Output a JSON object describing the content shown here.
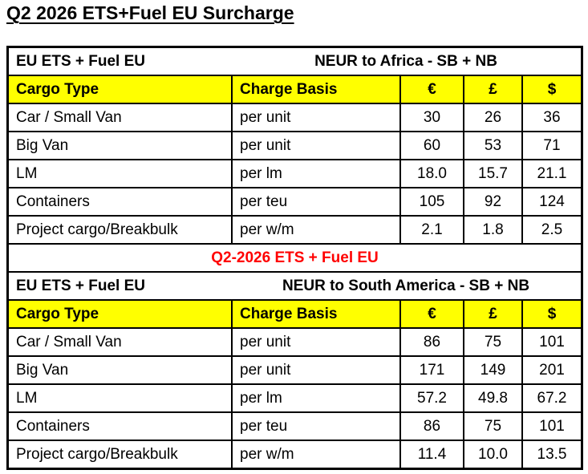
{
  "title": "Q2 2026 ETS+Fuel EU Surcharge",
  "divider_label": "Q2-2026 ETS + Fuel EU",
  "colors": {
    "header_highlight": "#FFFF00",
    "divider_text": "#FF0000",
    "border": "#000000",
    "background": "#FFFFFF"
  },
  "columns": {
    "cargo": "Cargo Type",
    "basis": "Charge Basis",
    "eur": "€",
    "gbp": "£",
    "usd": "$"
  },
  "tables": [
    {
      "label": "EU ETS + Fuel EU",
      "route": "NEUR to Africa - SB + NB",
      "rows": [
        {
          "cargo": "Car / Small Van",
          "basis": "per unit",
          "eur": "30",
          "gbp": "26",
          "usd": "36"
        },
        {
          "cargo": "Big Van",
          "basis": "per unit",
          "eur": "60",
          "gbp": "53",
          "usd": "71"
        },
        {
          "cargo": "LM",
          "basis": "per lm",
          "eur": "18.0",
          "gbp": "15.7",
          "usd": "21.1"
        },
        {
          "cargo": "Containers",
          "basis": "per teu",
          "eur": "105",
          "gbp": "92",
          "usd": "124"
        },
        {
          "cargo": "Project cargo/Breakbulk",
          "basis": "per w/m",
          "eur": "2.1",
          "gbp": "1.8",
          "usd": "2.5"
        }
      ]
    },
    {
      "label": "EU ETS + Fuel EU",
      "route": "NEUR to South America - SB + NB",
      "rows": [
        {
          "cargo": "Car / Small Van",
          "basis": "per unit",
          "eur": "86",
          "gbp": "75",
          "usd": "101"
        },
        {
          "cargo": "Big Van",
          "basis": "per unit",
          "eur": "171",
          "gbp": "149",
          "usd": "201"
        },
        {
          "cargo": "LM",
          "basis": "per lm",
          "eur": "57.2",
          "gbp": "49.8",
          "usd": "67.2"
        },
        {
          "cargo": "Containers",
          "basis": "per teu",
          "eur": "86",
          "gbp": "75",
          "usd": "101"
        },
        {
          "cargo": "Project cargo/Breakbulk",
          "basis": "per w/m",
          "eur": "11.4",
          "gbp": "10.0",
          "usd": "13.5"
        }
      ]
    }
  ]
}
